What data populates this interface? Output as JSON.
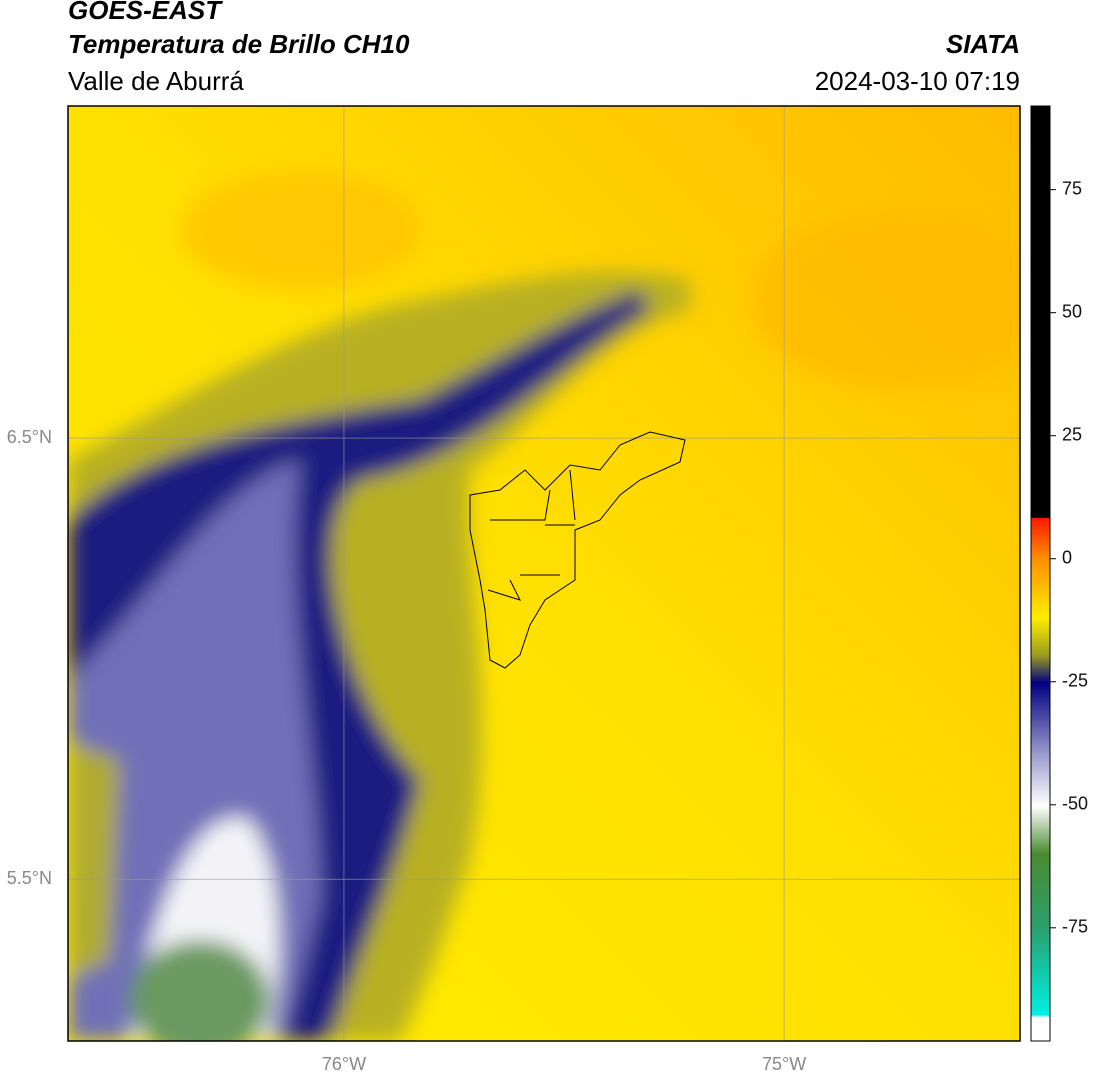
{
  "header": {
    "title": "GOES-EAST",
    "subtitle": "Temperatura de Brillo CH10",
    "region": "Valle de Aburrá",
    "source": "SIATA",
    "datetime": "2024-03-10 07:19"
  },
  "map": {
    "xlim": [
      -76.627,
      -74.464
    ],
    "ylim": [
      5.133,
      7.253
    ],
    "xticks": [
      {
        "value": -76,
        "label": "76°W"
      },
      {
        "value": -75,
        "label": "75°W"
      }
    ],
    "yticks": [
      {
        "value": 6.5,
        "label": "6.5°N"
      },
      {
        "value": 5.5,
        "label": "5.5°N"
      }
    ]
  },
  "colorbar": {
    "lim": [
      -98,
      92
    ],
    "ticks": [
      -75,
      -50,
      -25,
      0,
      25,
      50,
      75
    ]
  }
}
